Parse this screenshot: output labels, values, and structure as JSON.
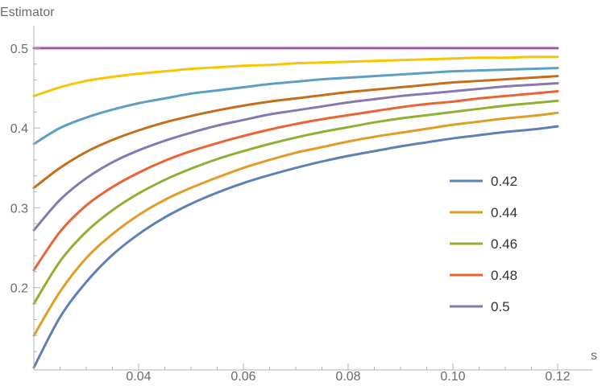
{
  "chart_data": {
    "type": "line",
    "title": "",
    "xlabel": "s",
    "ylabel": "Estimator",
    "xlim": [
      0.02,
      0.122
    ],
    "ylim": [
      0.1,
      0.52
    ],
    "x_ticks_major": [
      0.04,
      0.06,
      0.08,
      0.1,
      0.12
    ],
    "x_tick_labels": [
      "0.04",
      "0.06",
      "0.08",
      "0.10",
      "0.12"
    ],
    "y_ticks_major": [
      0.2,
      0.3,
      0.4,
      0.5
    ],
    "y_tick_labels": [
      "0.2",
      "0.3",
      "0.4",
      "0.5"
    ],
    "grid": false,
    "legend_position": "right",
    "x": [
      0.02,
      0.025,
      0.03,
      0.035,
      0.04,
      0.045,
      0.05,
      0.055,
      0.06,
      0.065,
      0.07,
      0.075,
      0.08,
      0.085,
      0.09,
      0.095,
      0.1,
      0.105,
      0.11,
      0.115,
      0.12
    ],
    "series": [
      {
        "name": "0.42",
        "color": "#5e81b5",
        "in_legend": true,
        "values": [
          0.1,
          0.163,
          0.207,
          0.241,
          0.267,
          0.288,
          0.305,
          0.319,
          0.331,
          0.341,
          0.35,
          0.358,
          0.365,
          0.371,
          0.377,
          0.382,
          0.387,
          0.391,
          0.395,
          0.398,
          0.402
        ]
      },
      {
        "name": "0.44",
        "color": "#e19c24",
        "in_legend": true,
        "values": [
          0.14,
          0.195,
          0.237,
          0.267,
          0.291,
          0.31,
          0.325,
          0.338,
          0.35,
          0.36,
          0.369,
          0.376,
          0.383,
          0.389,
          0.394,
          0.399,
          0.404,
          0.408,
          0.412,
          0.415,
          0.419
        ]
      },
      {
        "name": "0.46",
        "color": "#8fb032",
        "in_legend": true,
        "values": [
          0.18,
          0.233,
          0.27,
          0.297,
          0.318,
          0.335,
          0.349,
          0.361,
          0.371,
          0.38,
          0.388,
          0.395,
          0.401,
          0.407,
          0.412,
          0.416,
          0.42,
          0.424,
          0.428,
          0.431,
          0.434
        ]
      },
      {
        "name": "0.48",
        "color": "#eb6235",
        "in_legend": true,
        "values": [
          0.222,
          0.27,
          0.303,
          0.326,
          0.344,
          0.359,
          0.371,
          0.381,
          0.39,
          0.398,
          0.405,
          0.411,
          0.416,
          0.421,
          0.426,
          0.43,
          0.433,
          0.437,
          0.44,
          0.443,
          0.446
        ]
      },
      {
        "name": "0.5",
        "color": "#8778b3",
        "in_legend": true,
        "values": [
          0.272,
          0.31,
          0.337,
          0.357,
          0.372,
          0.384,
          0.394,
          0.403,
          0.41,
          0.417,
          0.422,
          0.427,
          0.432,
          0.436,
          0.44,
          0.443,
          0.446,
          0.449,
          0.452,
          0.454,
          0.456
        ]
      },
      {
        "name": "",
        "color": "#c56e1a",
        "in_legend": false,
        "values": [
          0.325,
          0.35,
          0.37,
          0.385,
          0.397,
          0.407,
          0.415,
          0.422,
          0.428,
          0.433,
          0.437,
          0.441,
          0.445,
          0.448,
          0.451,
          0.454,
          0.457,
          0.459,
          0.461,
          0.463,
          0.465
        ]
      },
      {
        "name": "",
        "color": "#5d9ec7",
        "in_legend": false,
        "values": [
          0.38,
          0.4,
          0.413,
          0.423,
          0.431,
          0.437,
          0.443,
          0.447,
          0.451,
          0.455,
          0.458,
          0.461,
          0.463,
          0.465,
          0.467,
          0.469,
          0.471,
          0.472,
          0.473,
          0.474,
          0.475
        ]
      },
      {
        "name": "",
        "color": "#f8c500",
        "in_legend": false,
        "values": [
          0.44,
          0.451,
          0.459,
          0.464,
          0.468,
          0.471,
          0.474,
          0.476,
          0.478,
          0.479,
          0.481,
          0.482,
          0.483,
          0.484,
          0.485,
          0.486,
          0.487,
          0.488,
          0.488,
          0.489,
          0.489
        ]
      },
      {
        "name": "",
        "color": "#9b5ba0",
        "in_legend": false,
        "values": [
          0.5,
          0.5,
          0.5,
          0.5,
          0.5,
          0.5,
          0.5,
          0.5,
          0.5,
          0.5,
          0.5,
          0.5,
          0.5,
          0.5,
          0.5,
          0.5,
          0.5,
          0.5,
          0.5,
          0.5,
          0.5
        ]
      }
    ]
  }
}
